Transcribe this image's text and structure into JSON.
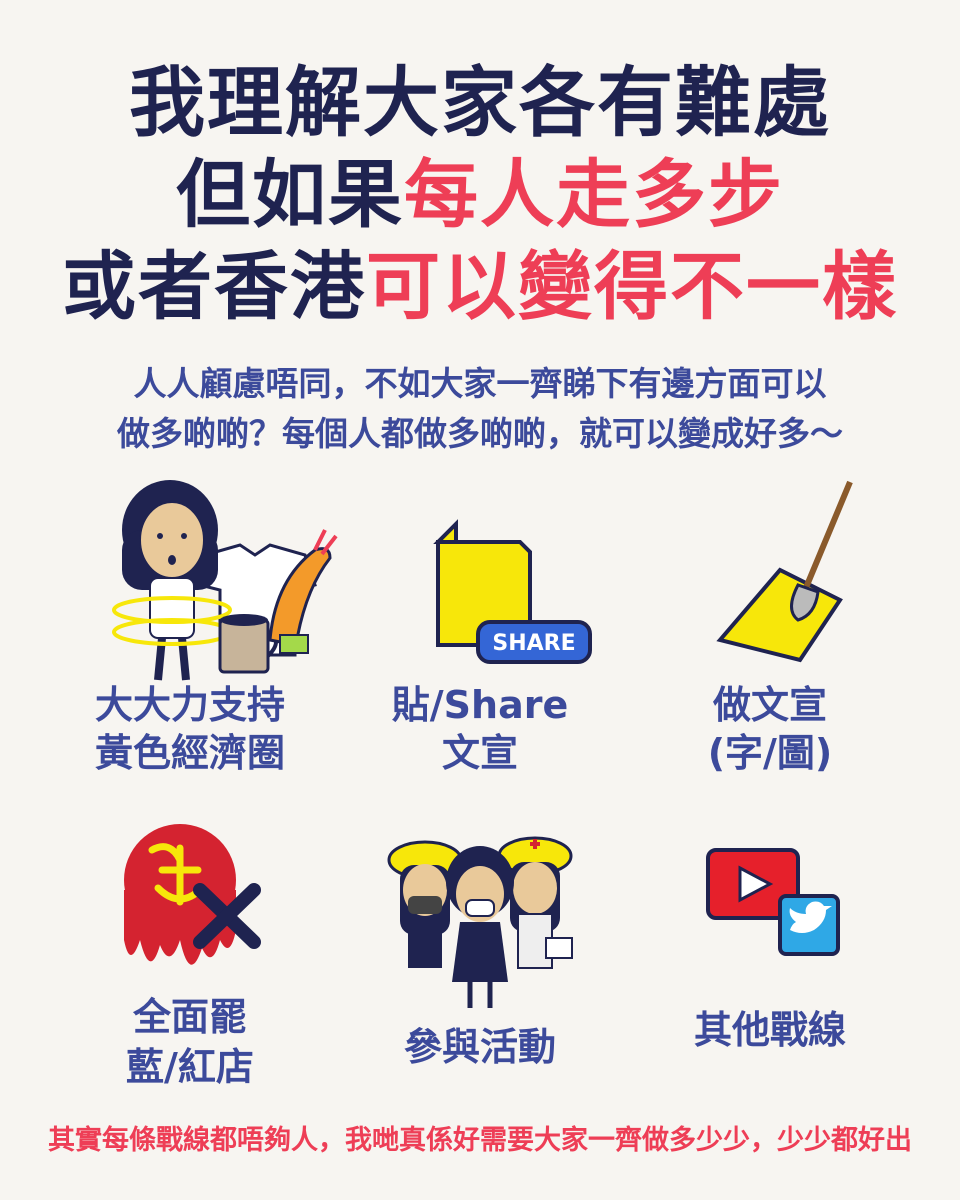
{
  "headline": {
    "line1": "我理解大家各有難處",
    "line2_prefix": "但如果",
    "line2_highlight": "每人走多步",
    "line3_prefix": "或者香港",
    "line3_highlight": "可以變得不一樣"
  },
  "intro": {
    "line1": "人人顧慮唔同，不如大家一齊睇下有邊方面可以",
    "line2": "做多啲啲？每個人都做多啲啲，就可以變成好多～"
  },
  "actions": [
    {
      "icon": "yellow-economy-icon",
      "line1": "大大力支持",
      "line2": "黃色經濟圈"
    },
    {
      "icon": "share-document-icon",
      "line1": "貼/Share",
      "line2": "文宣",
      "badge": "SHARE"
    },
    {
      "icon": "paintbrush-paper-icon",
      "line1": "做文宣",
      "line2": "(字/圖)"
    },
    {
      "icon": "boycott-red-shop-icon",
      "line1": "全面罷",
      "line2": "藍/紅店"
    },
    {
      "icon": "protest-volunteers-icon",
      "line1": "參與活動",
      "line2": ""
    },
    {
      "icon": "youtube-twitter-icon",
      "line1": "其他戰線",
      "line2": ""
    }
  ],
  "footer": {
    "text": "其實每條戰線都唔夠人，我哋真係好需要大家一齊做多少少，少少都好出"
  },
  "colors": {
    "navy": "#1f2350",
    "red": "#ee3e56",
    "blue_text": "#3c4a9b",
    "yellow": "#f7e70a",
    "background": "#f7f5f1"
  }
}
